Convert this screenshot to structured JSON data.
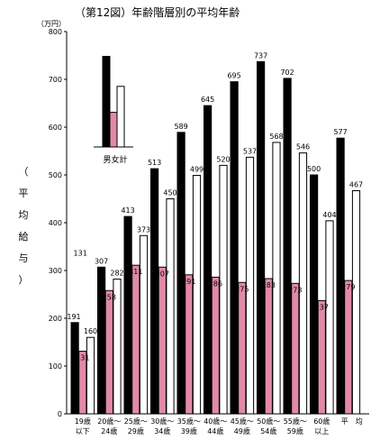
{
  "chart_data": {
    "type": "bar",
    "title": "（第12図）年齢階層別の平均年齢",
    "unit": "（万円）",
    "ylabel_chars": [
      "（",
      "平",
      "均",
      "給",
      "与",
      "）"
    ],
    "ylim": [
      0,
      800
    ],
    "yticks": [
      "0",
      "100",
      "200",
      "300",
      "400",
      "500",
      "600",
      "700",
      "800"
    ],
    "categories": [
      [
        "19歳",
        "以下"
      ],
      [
        "20歳～",
        "24歳"
      ],
      [
        "25歳～",
        "29歳"
      ],
      [
        "30歳～",
        "34歳"
      ],
      [
        "35歳～",
        "39歳"
      ],
      [
        "40歳～",
        "44歳"
      ],
      [
        "45歳～",
        "49歳"
      ],
      [
        "50歳～",
        "54歳"
      ],
      [
        "55歳～",
        "59歳"
      ],
      [
        "60歳",
        "以上"
      ],
      [
        "平　均"
      ]
    ],
    "series": [
      {
        "color": "#000000",
        "values": [
          191,
          307,
          413,
          513,
          589,
          645,
          695,
          737,
          702,
          500,
          577
        ]
      },
      {
        "color": "#e18aa8",
        "values": [
          131,
          258,
          311,
          307,
          291,
          286,
          275,
          283,
          273,
          237,
          279
        ]
      },
      {
        "color": "#ffffff",
        "values": [
          160,
          282,
          373,
          450,
          499,
          520,
          537,
          568,
          546,
          404,
          467
        ]
      }
    ],
    "extra_labels": [
      {
        "category_index": 0,
        "text": "131"
      }
    ],
    "legend": {
      "label": "男女計",
      "placement": "inset-top-left"
    }
  }
}
